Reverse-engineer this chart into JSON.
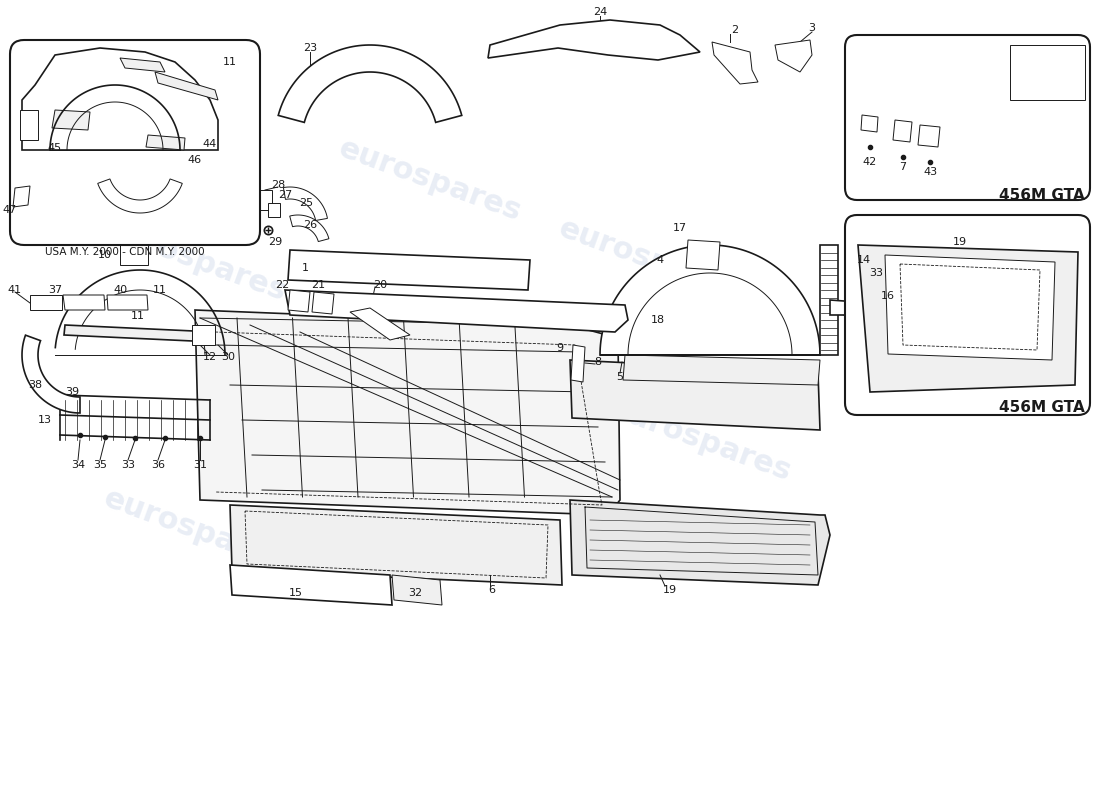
{
  "background_color": "#ffffff",
  "line_color": "#1a1a1a",
  "watermark_text": "eurospares",
  "watermark_color": "#c8d4e8",
  "watermark_alpha": 0.4,
  "inset_label_usa": "USA M.Y. 2000 - CDN M.Y. 2000",
  "inset_label_gta": "456M GTA",
  "figsize": [
    11.0,
    8.0
  ],
  "dpi": 100
}
